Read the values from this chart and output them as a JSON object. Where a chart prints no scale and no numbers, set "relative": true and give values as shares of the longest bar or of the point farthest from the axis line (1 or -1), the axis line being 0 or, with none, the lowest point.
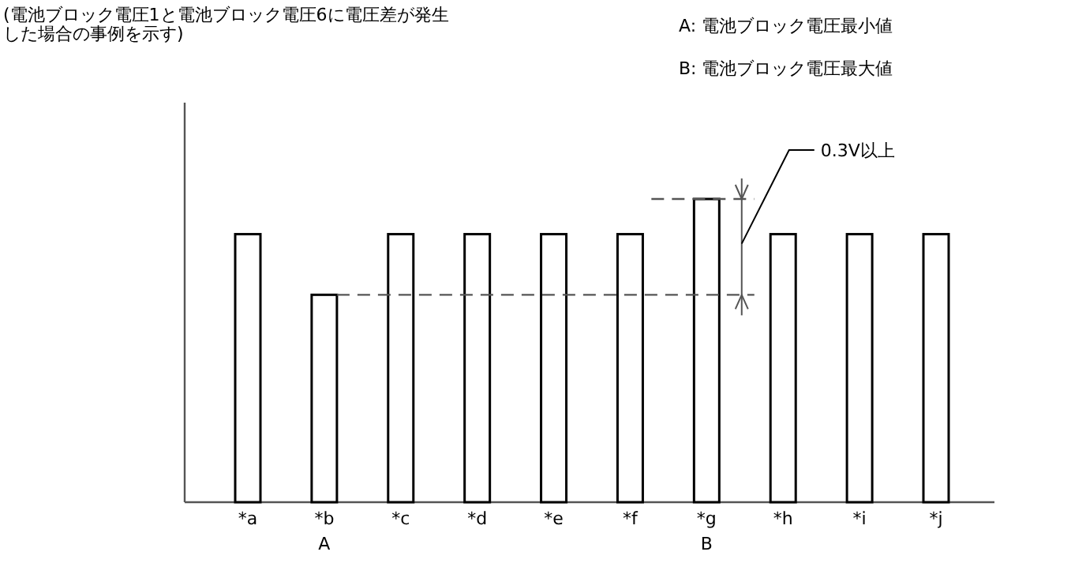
{
  "chart_data": {
    "type": "bar",
    "relative": true,
    "title": "(電池ブロック電圧1と電池ブロック電圧6に電圧差が発生した場合の事例を示す)",
    "categories": [
      "*a",
      "*b",
      "*c",
      "*d",
      "*e",
      "*f",
      "*g",
      "*h",
      "*i",
      "*j"
    ],
    "values": [
      0.884,
      0.684,
      0.884,
      0.884,
      0.884,
      0.884,
      1,
      0.884,
      0.884,
      0.884
    ],
    "color": "#ffffff",
    "ref_lines": [
      {
        "axis": "y",
        "value": 0.684,
        "line_style": "dashed",
        "color": "#555555"
      },
      {
        "axis": "y",
        "value": 1,
        "line_style": "dashed",
        "color": "#555555"
      }
    ],
    "annotations": [
      "A: 電池ブロック電圧最小値",
      "B: 電池ブロック電圧最大値",
      "0.3V以上",
      "A",
      "B"
    ]
  }
}
